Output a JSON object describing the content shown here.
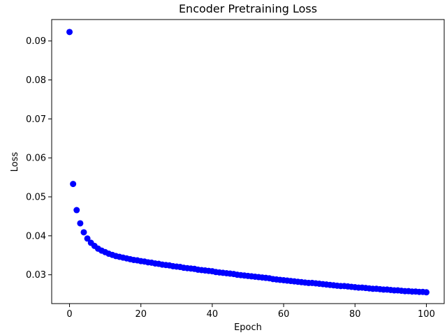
{
  "chart_data": {
    "type": "scatter",
    "title": "Encoder Pretraining Loss",
    "xlabel": "Epoch",
    "ylabel": "Loss",
    "xlim": [
      -5,
      105
    ],
    "ylim": [
      0.0226,
      0.0955
    ],
    "xticks": [
      0,
      20,
      40,
      60,
      80,
      100
    ],
    "yticks": [
      0.03,
      0.04,
      0.05,
      0.06,
      0.07,
      0.08,
      0.09
    ],
    "grid": false,
    "legend": "none",
    "marker_color": "#0000ff",
    "series": [
      {
        "x": [
          0,
          1,
          2,
          3,
          4,
          5,
          6,
          7,
          8,
          9,
          10,
          11,
          12,
          13,
          14,
          15,
          16,
          17,
          18,
          19,
          20,
          21,
          22,
          23,
          24,
          25,
          26,
          27,
          28,
          29,
          30,
          31,
          32,
          33,
          34,
          35,
          36,
          37,
          38,
          39,
          40,
          41,
          42,
          43,
          44,
          45,
          46,
          47,
          48,
          49,
          50,
          51,
          52,
          53,
          54,
          55,
          56,
          57,
          58,
          59,
          60,
          61,
          62,
          63,
          64,
          65,
          66,
          67,
          68,
          69,
          70,
          71,
          72,
          73,
          74,
          75,
          76,
          77,
          78,
          79,
          80,
          81,
          82,
          83,
          84,
          85,
          86,
          87,
          88,
          89,
          90,
          91,
          92,
          93,
          94,
          95,
          96,
          97,
          98,
          99,
          100
        ],
        "y": [
          0.0923,
          0.0533,
          0.0466,
          0.0432,
          0.0409,
          0.0393,
          0.0382,
          0.0374,
          0.0367,
          0.0362,
          0.0358,
          0.0354,
          0.0351,
          0.0348,
          0.0346,
          0.0344,
          0.0342,
          0.034,
          0.0338,
          0.0337,
          0.0335,
          0.0334,
          0.0332,
          0.0331,
          0.0329,
          0.0328,
          0.0326,
          0.0325,
          0.0324,
          0.0322,
          0.0321,
          0.032,
          0.0318,
          0.0317,
          0.0316,
          0.0315,
          0.0313,
          0.0312,
          0.0311,
          0.031,
          0.0309,
          0.0307,
          0.0306,
          0.0305,
          0.0304,
          0.0303,
          0.0302,
          0.03,
          0.0299,
          0.0298,
          0.0297,
          0.0296,
          0.0295,
          0.0294,
          0.0293,
          0.0292,
          0.0291,
          0.0289,
          0.0288,
          0.0287,
          0.0286,
          0.0285,
          0.0284,
          0.0283,
          0.0282,
          0.0281,
          0.028,
          0.0279,
          0.0279,
          0.0278,
          0.0277,
          0.0276,
          0.0275,
          0.0274,
          0.0273,
          0.0272,
          0.0271,
          0.0271,
          0.027,
          0.0269,
          0.0268,
          0.0267,
          0.0267,
          0.0266,
          0.0265,
          0.0264,
          0.0264,
          0.0263,
          0.0262,
          0.0262,
          0.0261,
          0.026,
          0.026,
          0.0259,
          0.0258,
          0.0258,
          0.0257,
          0.0257,
          0.0256,
          0.0256,
          0.0255
        ]
      }
    ]
  }
}
